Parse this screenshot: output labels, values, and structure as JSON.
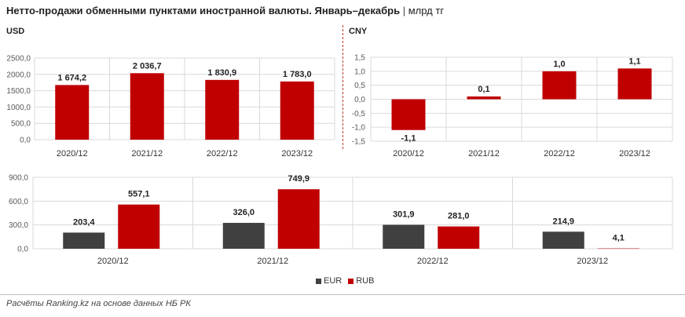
{
  "header": {
    "title": "Нетто-продажи обменными пунктами иностранной валюты. Январь–декабрь",
    "separator": "|",
    "unit": "млрд тг"
  },
  "colors": {
    "red": "#c00000",
    "dark": "#404040",
    "grid": "#d9d9d9",
    "axis_text": "#595959"
  },
  "legend": {
    "items": [
      {
        "label": "EUR",
        "color": "#404040"
      },
      {
        "label": "RUB",
        "color": "#c00000"
      }
    ]
  },
  "source": "Расчёты Ranking.kz на основе данных НБ РК",
  "chart_data": [
    {
      "type": "bar",
      "panel_label": "USD",
      "categories": [
        "2020/12",
        "2021/12",
        "2022/12",
        "2023/12"
      ],
      "values": [
        1674.2,
        2036.7,
        1830.9,
        1783.0
      ],
      "data_labels": [
        "1 674,2",
        "2 036,7",
        "1 830,9",
        "1 783,0"
      ],
      "ylim": [
        0,
        2500
      ],
      "yticks": [
        0,
        500,
        1000,
        1500,
        2000,
        2500
      ],
      "ytick_labels": [
        "0,0",
        "500,0",
        "1000,0",
        "1500,0",
        "2000,0",
        "2500,0"
      ],
      "grid": true
    },
    {
      "type": "bar",
      "panel_label": "CNY",
      "categories": [
        "2020/12",
        "2021/12",
        "2022/12",
        "2023/12"
      ],
      "values": [
        -1.1,
        0.1,
        1.0,
        1.1
      ],
      "data_labels": [
        "-1,1",
        "0,1",
        "1,0",
        "1,1"
      ],
      "ylim": [
        -1.5,
        1.5
      ],
      "yticks": [
        -1.5,
        -1.0,
        -0.5,
        0,
        0.5,
        1.0,
        1.5
      ],
      "ytick_labels": [
        "-1,5",
        "-1,0",
        "-0,5",
        "0,0",
        "0,5",
        "1,0",
        "1,5"
      ],
      "grid": true
    },
    {
      "type": "bar",
      "categories": [
        "2020/12",
        "2021/12",
        "2022/12",
        "2023/12"
      ],
      "series": [
        {
          "name": "EUR",
          "values": [
            203.4,
            326.0,
            301.9,
            214.9
          ],
          "data_labels": [
            "203,4",
            "326,0",
            "301,9",
            "214,9"
          ]
        },
        {
          "name": "RUB",
          "values": [
            557.1,
            749.9,
            281.0,
            4.1
          ],
          "data_labels": [
            "557,1",
            "749,9",
            "281,0",
            "4,1"
          ]
        }
      ],
      "ylim": [
        0,
        900
      ],
      "yticks": [
        0,
        300,
        600,
        900
      ],
      "ytick_labels": [
        "0,0",
        "300,0",
        "600,0",
        "900,0"
      ],
      "grid": true,
      "legend": "bottom-center"
    }
  ]
}
